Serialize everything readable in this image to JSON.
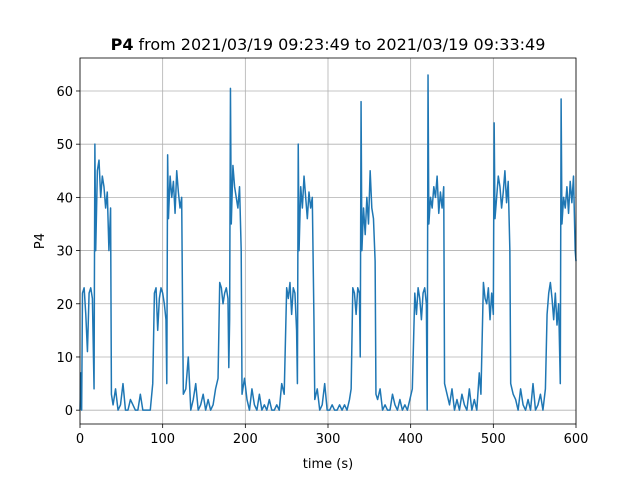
{
  "chart_data": {
    "type": "line",
    "title_prefix": "P4",
    "title": "from 2021/03/19 09:23:49 to 2021/03/19 09:33:49",
    "xlabel": "time (s)",
    "ylabel": "P4",
    "xlim": [
      0,
      600
    ],
    "ylim": [
      -2.6,
      66.2
    ],
    "xticks": [
      0,
      100,
      200,
      300,
      400,
      500,
      600
    ],
    "yticks": [
      0,
      10,
      20,
      30,
      40,
      50,
      60
    ],
    "grid": true,
    "x": [
      0,
      1,
      2,
      3,
      5,
      7,
      9,
      11,
      13,
      15,
      17,
      18,
      19,
      21,
      23,
      25,
      27,
      29,
      31,
      33,
      35,
      37,
      38,
      40,
      43,
      46,
      49,
      52,
      55,
      58,
      61,
      64,
      67,
      70,
      73,
      76,
      79,
      82,
      85,
      88,
      90,
      92,
      94,
      96,
      98,
      100,
      102,
      104,
      105,
      106,
      107,
      109,
      111,
      113,
      115,
      117,
      119,
      121,
      123,
      124,
      125,
      128,
      131,
      134,
      137,
      140,
      143,
      146,
      149,
      152,
      155,
      158,
      161,
      164,
      167,
      169,
      171,
      173,
      175,
      177,
      179,
      180,
      181,
      182,
      183,
      185,
      187,
      189,
      191,
      193,
      195,
      196,
      199,
      202,
      205,
      208,
      211,
      214,
      217,
      220,
      223,
      226,
      229,
      232,
      235,
      238,
      241,
      244,
      247,
      250,
      252,
      254,
      256,
      258,
      260,
      262,
      263,
      264,
      265,
      267,
      269,
      271,
      273,
      275,
      277,
      279,
      281,
      283,
      284,
      287,
      290,
      293,
      296,
      299,
      302,
      305,
      308,
      311,
      314,
      317,
      320,
      323,
      326,
      328,
      330,
      332,
      334,
      336,
      338,
      339,
      340,
      341,
      343,
      345,
      347,
      349,
      351,
      353,
      355,
      357,
      358,
      360,
      363,
      366,
      369,
      372,
      375,
      378,
      381,
      384,
      387,
      390,
      393,
      396,
      399,
      402,
      405,
      407,
      409,
      411,
      413,
      415,
      417,
      419,
      420,
      421,
      422,
      424,
      426,
      428,
      430,
      432,
      434,
      436,
      438,
      440,
      441,
      444,
      447,
      450,
      453,
      456,
      459,
      462,
      465,
      468,
      471,
      474,
      477,
      480,
      483,
      485,
      488,
      490,
      492,
      494,
      496,
      498,
      500,
      501,
      502,
      504,
      506,
      508,
      510,
      512,
      514,
      516,
      518,
      520,
      521,
      524,
      527,
      530,
      533,
      536,
      539,
      542,
      545,
      548,
      551,
      554,
      557,
      560,
      563,
      565,
      567,
      569,
      571,
      573,
      575,
      577,
      579,
      581,
      582,
      583,
      585,
      587,
      589,
      591,
      593,
      595,
      597,
      599,
      600
    ],
    "series": [
      {
        "name": "P4",
        "color": "#1f77b4",
        "values": [
          0,
          7,
          0,
          22,
          23,
          18,
          11,
          22,
          23,
          21,
          4,
          50,
          30,
          45,
          47,
          40,
          44,
          42,
          38,
          41,
          30,
          38,
          3,
          1,
          4,
          0,
          1,
          5,
          0,
          0,
          2,
          1,
          0,
          0,
          3,
          0,
          0,
          0,
          0,
          5,
          22,
          23,
          15,
          21,
          23,
          22,
          20,
          17,
          5,
          48,
          36,
          44,
          40,
          43,
          37,
          45,
          41,
          38,
          40,
          20,
          3,
          4,
          10,
          0,
          2,
          5,
          0,
          1,
          3,
          0,
          2,
          0,
          1,
          4,
          6,
          24,
          23,
          20,
          22,
          23,
          21,
          8,
          17,
          60.5,
          35,
          46,
          42,
          40,
          38,
          42,
          30,
          3,
          6,
          2,
          0,
          4,
          1,
          0,
          3,
          0,
          1,
          0,
          2,
          0,
          0,
          1,
          0,
          5,
          3,
          23,
          21,
          24,
          18,
          23,
          22,
          15,
          5,
          50,
          30,
          42,
          38,
          44,
          40,
          36,
          41,
          38,
          40,
          17,
          2,
          4,
          0,
          1,
          5,
          0,
          0,
          1,
          0,
          0,
          1,
          0,
          1,
          0,
          2,
          4,
          23,
          22,
          18,
          23,
          22,
          10,
          58,
          30,
          38,
          33,
          40,
          35,
          45,
          38,
          36,
          28,
          3,
          2,
          4,
          0,
          1,
          0,
          0,
          3,
          1,
          0,
          2,
          0,
          1,
          0,
          2,
          4,
          22,
          18,
          23,
          21,
          17,
          22,
          23,
          20,
          0,
          63,
          35,
          40,
          38,
          42,
          40,
          44,
          37,
          41,
          38,
          42,
          5,
          3,
          1,
          4,
          0,
          2,
          0,
          3,
          1,
          0,
          4,
          0,
          2,
          0,
          7,
          3,
          24,
          21,
          20,
          23,
          17,
          22,
          18,
          54,
          36,
          40,
          44,
          42,
          38,
          41,
          45,
          39,
          43,
          30,
          5,
          3,
          2,
          0,
          4,
          1,
          0,
          2,
          0,
          5,
          0,
          1,
          3,
          0,
          4,
          18,
          22,
          24,
          21,
          17,
          22,
          16,
          20,
          5,
          58.5,
          35,
          40,
          38,
          42,
          37,
          43,
          39,
          44,
          30,
          28
        ]
      }
    ]
  }
}
